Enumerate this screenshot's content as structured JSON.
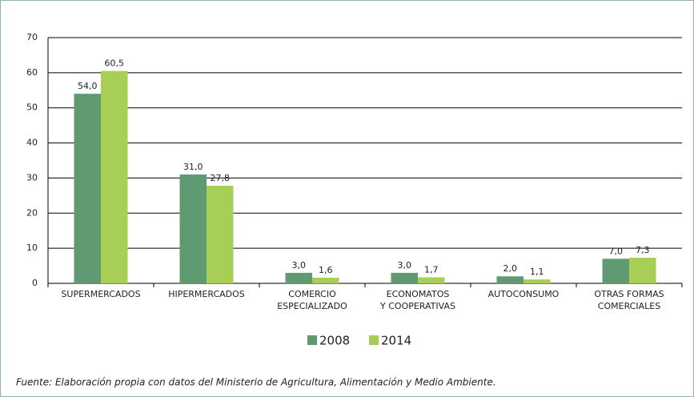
{
  "chart_data": {
    "type": "bar",
    "categories": [
      "SUPERMERCADOS",
      "HIPERMERCADOS",
      "COMERCIO\nESPECIALIZADO",
      "ECONOMATOS\nY COOPERATIVAS",
      "AUTOCONSUMO",
      "OTRAS FORMAS\nCOMERCIALES"
    ],
    "series": [
      {
        "name": "2008",
        "color": "#5f9a72",
        "values": [
          54.0,
          31.0,
          3.0,
          3.0,
          2.0,
          7.0
        ],
        "value_labels": [
          "54,0",
          "31,0",
          "3,0",
          "3,0",
          "2,0",
          "7,0"
        ]
      },
      {
        "name": "2014",
        "color": "#a7cf55",
        "values": [
          60.5,
          27.8,
          1.6,
          1.7,
          1.1,
          7.3
        ],
        "value_labels": [
          "60,5",
          "27,8",
          "1,6",
          "1,7",
          "1,1",
          "7,3"
        ]
      }
    ],
    "ylim": [
      0,
      70
    ],
    "yticks": [
      0,
      10,
      20,
      30,
      40,
      50,
      60,
      70
    ],
    "grid": true,
    "legend": "bottom",
    "source": "Fuente: Elaboración propia con datos del Ministerio de Agricultura, Alimentación y Medio Ambiente."
  }
}
